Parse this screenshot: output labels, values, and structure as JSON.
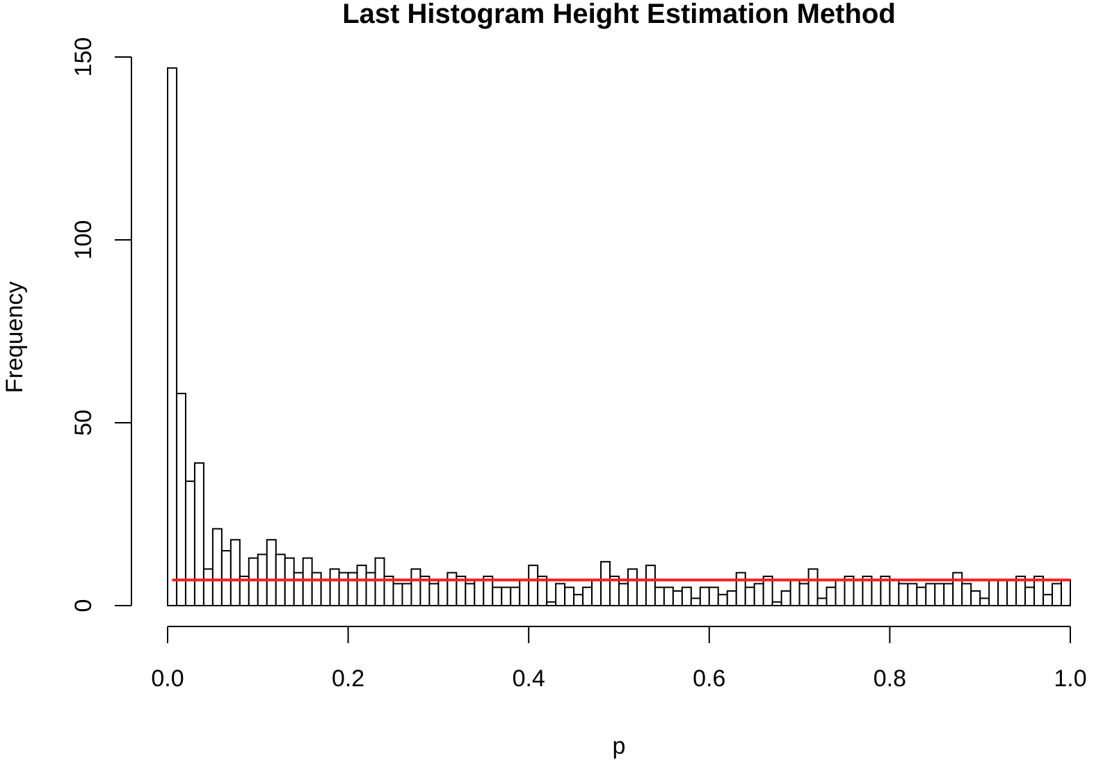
{
  "chart_data": {
    "type": "histogram",
    "title": "Last Histogram Height Estimation Method",
    "x_label": "p",
    "y_label": "Frequency",
    "bins": [
      0,
      0.01,
      0.02,
      0.03,
      0.04,
      0.05,
      0.06,
      0.07,
      0.08,
      0.09,
      0.1,
      0.11,
      0.12,
      0.13,
      0.14,
      0.15,
      0.16,
      0.17,
      0.18,
      0.19,
      0.2,
      0.21,
      0.22,
      0.23,
      0.24,
      0.25,
      0.26,
      0.27,
      0.28,
      0.29,
      0.3,
      0.31,
      0.32,
      0.33,
      0.34,
      0.35,
      0.36,
      0.37,
      0.38,
      0.39,
      0.4,
      0.41,
      0.42,
      0.43,
      0.44,
      0.45,
      0.46,
      0.47,
      0.48,
      0.49,
      0.5,
      0.51,
      0.52,
      0.53,
      0.54,
      0.55,
      0.56,
      0.57,
      0.58,
      0.59,
      0.6,
      0.61,
      0.62,
      0.63,
      0.64,
      0.65,
      0.66,
      0.67,
      0.68,
      0.69,
      0.7,
      0.71,
      0.72,
      0.73,
      0.74,
      0.75,
      0.76,
      0.77,
      0.78,
      0.79,
      0.8,
      0.81,
      0.82,
      0.83,
      0.84,
      0.85,
      0.86,
      0.87,
      0.88,
      0.89,
      0.9,
      0.91,
      0.92,
      0.93,
      0.94,
      0.95,
      0.96,
      0.97,
      0.98,
      0.99,
      1
    ],
    "values": [
      147,
      58,
      34,
      39,
      10,
      21,
      15,
      18,
      8,
      13,
      14,
      18,
      14,
      13,
      9,
      13,
      9,
      7,
      10,
      9,
      9,
      11,
      9,
      13,
      8,
      6,
      6,
      10,
      8,
      6,
      7,
      9,
      8,
      6,
      7,
      8,
      5,
      5,
      5,
      7,
      11,
      8,
      1,
      6,
      5,
      3,
      5,
      7,
      12,
      8,
      6,
      10,
      7,
      11,
      5,
      5,
      4,
      5,
      2,
      5,
      5,
      3,
      4,
      9,
      5,
      6,
      8,
      1,
      4,
      7,
      6,
      10,
      2,
      5,
      7,
      8,
      7,
      8,
      7,
      8,
      7,
      6,
      6,
      5,
      6,
      6,
      6,
      9,
      6,
      4,
      2,
      7,
      7,
      7,
      8,
      5,
      8,
      3,
      6,
      7
    ],
    "color": "#ffffff",
    "edge_color": "#000000",
    "reference_line": {
      "y": 7,
      "x": [
        0.005,
        1
      ],
      "color": "#ff2020"
    },
    "xlim": [
      0,
      1
    ],
    "ylim": [
      0,
      150
    ],
    "xticks": [
      {
        "value": 0,
        "label": "0.0"
      },
      0.2,
      0.4,
      0.6,
      0.8,
      {
        "value": 1,
        "label": "1.0"
      }
    ],
    "yticks": [
      0,
      50,
      100,
      150
    ]
  }
}
